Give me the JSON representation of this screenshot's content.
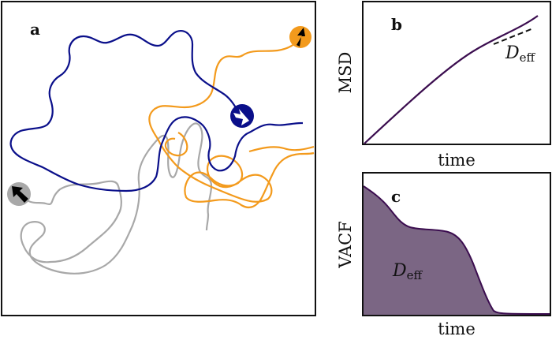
{
  "panels": {
    "a": {
      "letter": "a"
    },
    "b": {
      "letter": "b",
      "ylabel": "MSD",
      "xlabel": "time",
      "annotation": {
        "main": "D",
        "sub": "eff"
      }
    },
    "c": {
      "letter": "c",
      "ylabel": "VACF",
      "xlabel": "time",
      "annotation": {
        "main": "D",
        "sub": "eff"
      }
    }
  },
  "colors": {
    "navy": "#0a0f8a",
    "orange": "#f39a1c",
    "gray": "#a8a8a8",
    "purple_line": "#3b0d4f",
    "purple_fill": "#7b6684",
    "frame": "#111111"
  },
  "icons": [
    "navy-particle-icon",
    "orange-particle-icon",
    "gray-particle-icon"
  ]
}
